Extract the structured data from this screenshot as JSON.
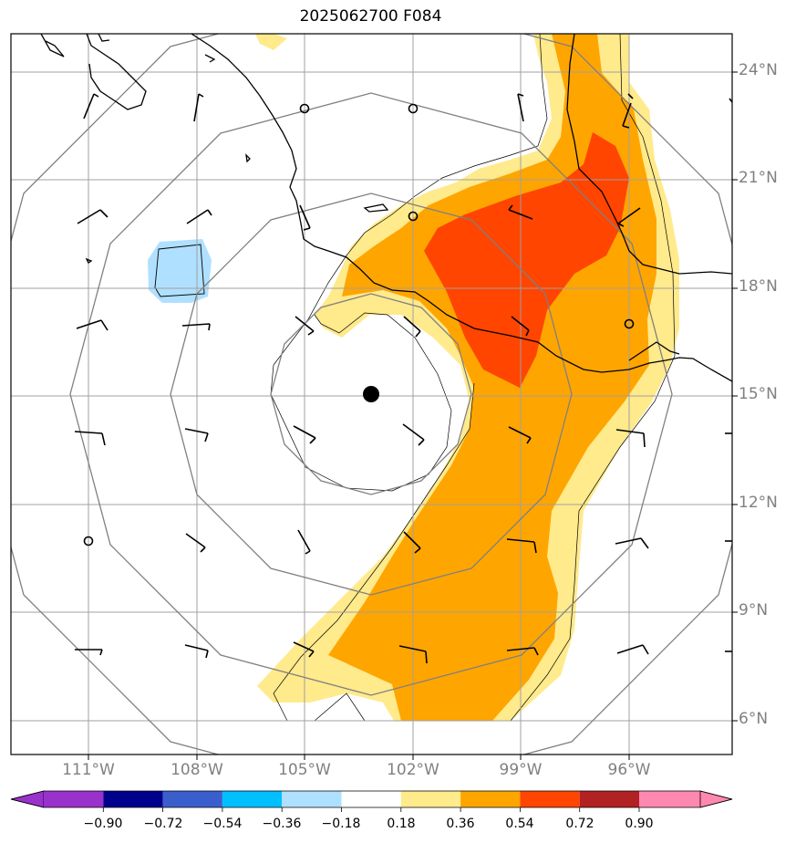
{
  "title": "2025062700 F084",
  "map": {
    "lon_ticks": [
      "111°W",
      "108°W",
      "105°W",
      "102°W",
      "99°W",
      "96°W"
    ],
    "lat_ticks": [
      "24°N",
      "21°N",
      "18°N",
      "15°N",
      "12°N",
      "9°N",
      "6°N"
    ],
    "extent": {
      "lon": [
        -113.2,
        -93.2
      ],
      "lat": [
        5.0,
        25.0
      ]
    },
    "storm_center": {
      "lon": -103.3,
      "lat": 15.05
    }
  },
  "colorbar": {
    "ticks": [
      "−0.90",
      "−0.72",
      "−0.54",
      "−0.36",
      "−0.18",
      "0.18",
      "0.36",
      "0.54",
      "0.72",
      "0.90"
    ],
    "colors": [
      "#9932cc",
      "#00008b",
      "#3a5fcd",
      "#00bfff",
      "#b0e0ff",
      "#ffffff",
      "#ffea8c",
      "#ffa500",
      "#ff4500",
      "#b22222",
      "#ff88b0"
    ]
  },
  "colors": {
    "level1": "#ffea8c",
    "level2": "#ffa500",
    "level3": "#ff4500",
    "negative": "#b0e0ff",
    "grid": "#a0a0a0",
    "rings": "#808080"
  }
}
